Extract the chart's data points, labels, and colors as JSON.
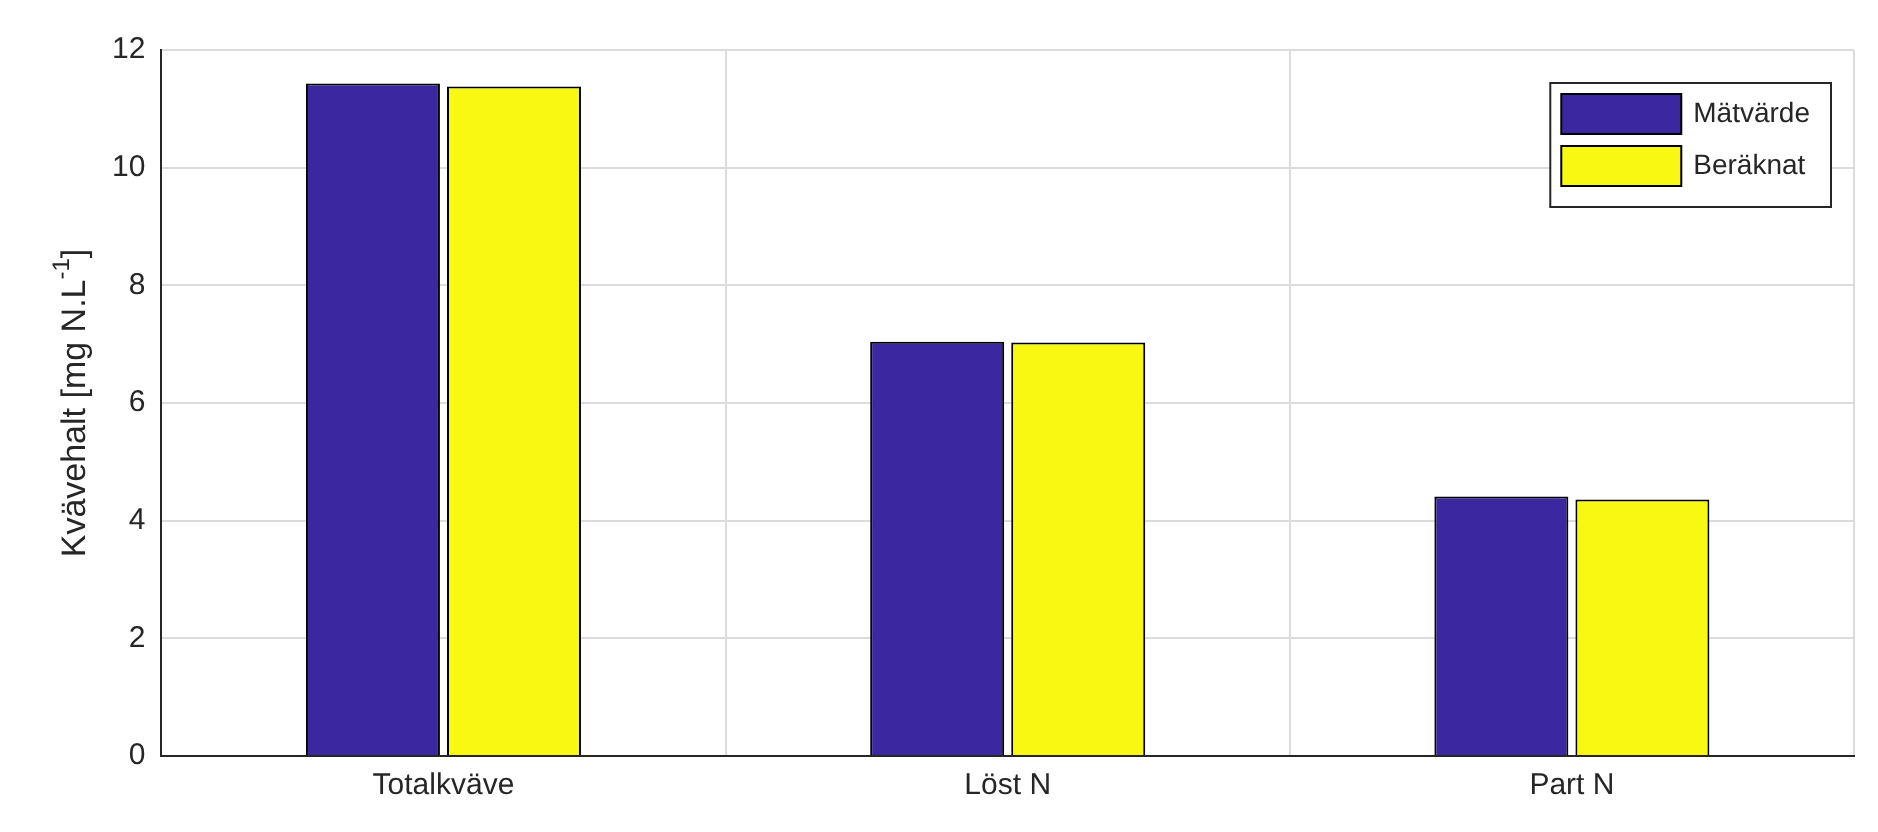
{
  "chart_data": {
    "type": "bar",
    "ylabel": "Kvävehalt [mg N.L$^{-1}$]",
    "categories": [
      "Totalkväve",
      "Löst N",
      "Part N"
    ],
    "series": [
      {
        "name": "Mätvärde",
        "color": "#3b28a0",
        "values": [
          11.43,
          7.04,
          4.41
        ]
      },
      {
        "name": "Beräknat",
        "color": "#f8f812",
        "values": [
          11.38,
          7.03,
          4.36
        ]
      }
    ],
    "ylim": [
      0,
      12
    ],
    "yticks": [
      0,
      2,
      4,
      6,
      8,
      10,
      12
    ],
    "grid": true,
    "legend": "top right"
  }
}
